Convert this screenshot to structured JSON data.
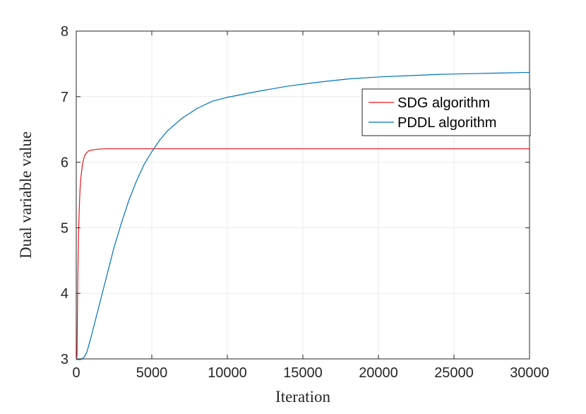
{
  "chart_data": {
    "type": "line",
    "title": "",
    "xlabel": "Iteration",
    "ylabel": "Dual variable value",
    "xlim": [
      0,
      30000
    ],
    "ylim": [
      3,
      8
    ],
    "xticks": [
      0,
      5000,
      10000,
      15000,
      20000,
      25000,
      30000
    ],
    "xtick_labels": [
      "0",
      "5000",
      "10000",
      "15000",
      "20000",
      "25000",
      "30000"
    ],
    "yticks": [
      3,
      4,
      5,
      6,
      7,
      8
    ],
    "ytick_labels": [
      "3",
      "4",
      "5",
      "6",
      "7",
      "8"
    ],
    "grid": true,
    "legend_position": "top-right",
    "series": [
      {
        "name": "SDG algorithm",
        "color": "#e8141b",
        "points": [
          [
            0,
            3.0
          ],
          [
            50,
            3.05
          ],
          [
            100,
            4.2
          ],
          [
            150,
            4.9
          ],
          [
            200,
            5.3
          ],
          [
            250,
            5.58
          ],
          [
            300,
            5.75
          ],
          [
            400,
            5.95
          ],
          [
            500,
            6.06
          ],
          [
            600,
            6.12
          ],
          [
            800,
            6.17
          ],
          [
            1000,
            6.185
          ],
          [
            1500,
            6.2
          ],
          [
            2000,
            6.205
          ],
          [
            3000,
            6.205
          ],
          [
            5000,
            6.205
          ],
          [
            10000,
            6.205
          ],
          [
            15000,
            6.205
          ],
          [
            20000,
            6.205
          ],
          [
            25000,
            6.205
          ],
          [
            30000,
            6.205
          ]
        ]
      },
      {
        "name": "PDDL algorithm",
        "color": "#0072bd",
        "points": [
          [
            0,
            2.99
          ],
          [
            300,
            2.99
          ],
          [
            500,
            3.02
          ],
          [
            700,
            3.1
          ],
          [
            1000,
            3.35
          ],
          [
            1500,
            3.8
          ],
          [
            2000,
            4.25
          ],
          [
            2500,
            4.7
          ],
          [
            3000,
            5.08
          ],
          [
            3500,
            5.43
          ],
          [
            4000,
            5.72
          ],
          [
            4500,
            5.97
          ],
          [
            5000,
            6.16
          ],
          [
            5500,
            6.33
          ],
          [
            6000,
            6.47
          ],
          [
            7000,
            6.67
          ],
          [
            8000,
            6.82
          ],
          [
            9000,
            6.93
          ],
          [
            10000,
            6.99
          ],
          [
            12000,
            7.08
          ],
          [
            14000,
            7.16
          ],
          [
            16000,
            7.22
          ],
          [
            18000,
            7.27
          ],
          [
            20000,
            7.3
          ],
          [
            22000,
            7.32
          ],
          [
            24000,
            7.34
          ],
          [
            26000,
            7.35
          ],
          [
            28000,
            7.36
          ],
          [
            30000,
            7.37
          ]
        ]
      }
    ]
  }
}
